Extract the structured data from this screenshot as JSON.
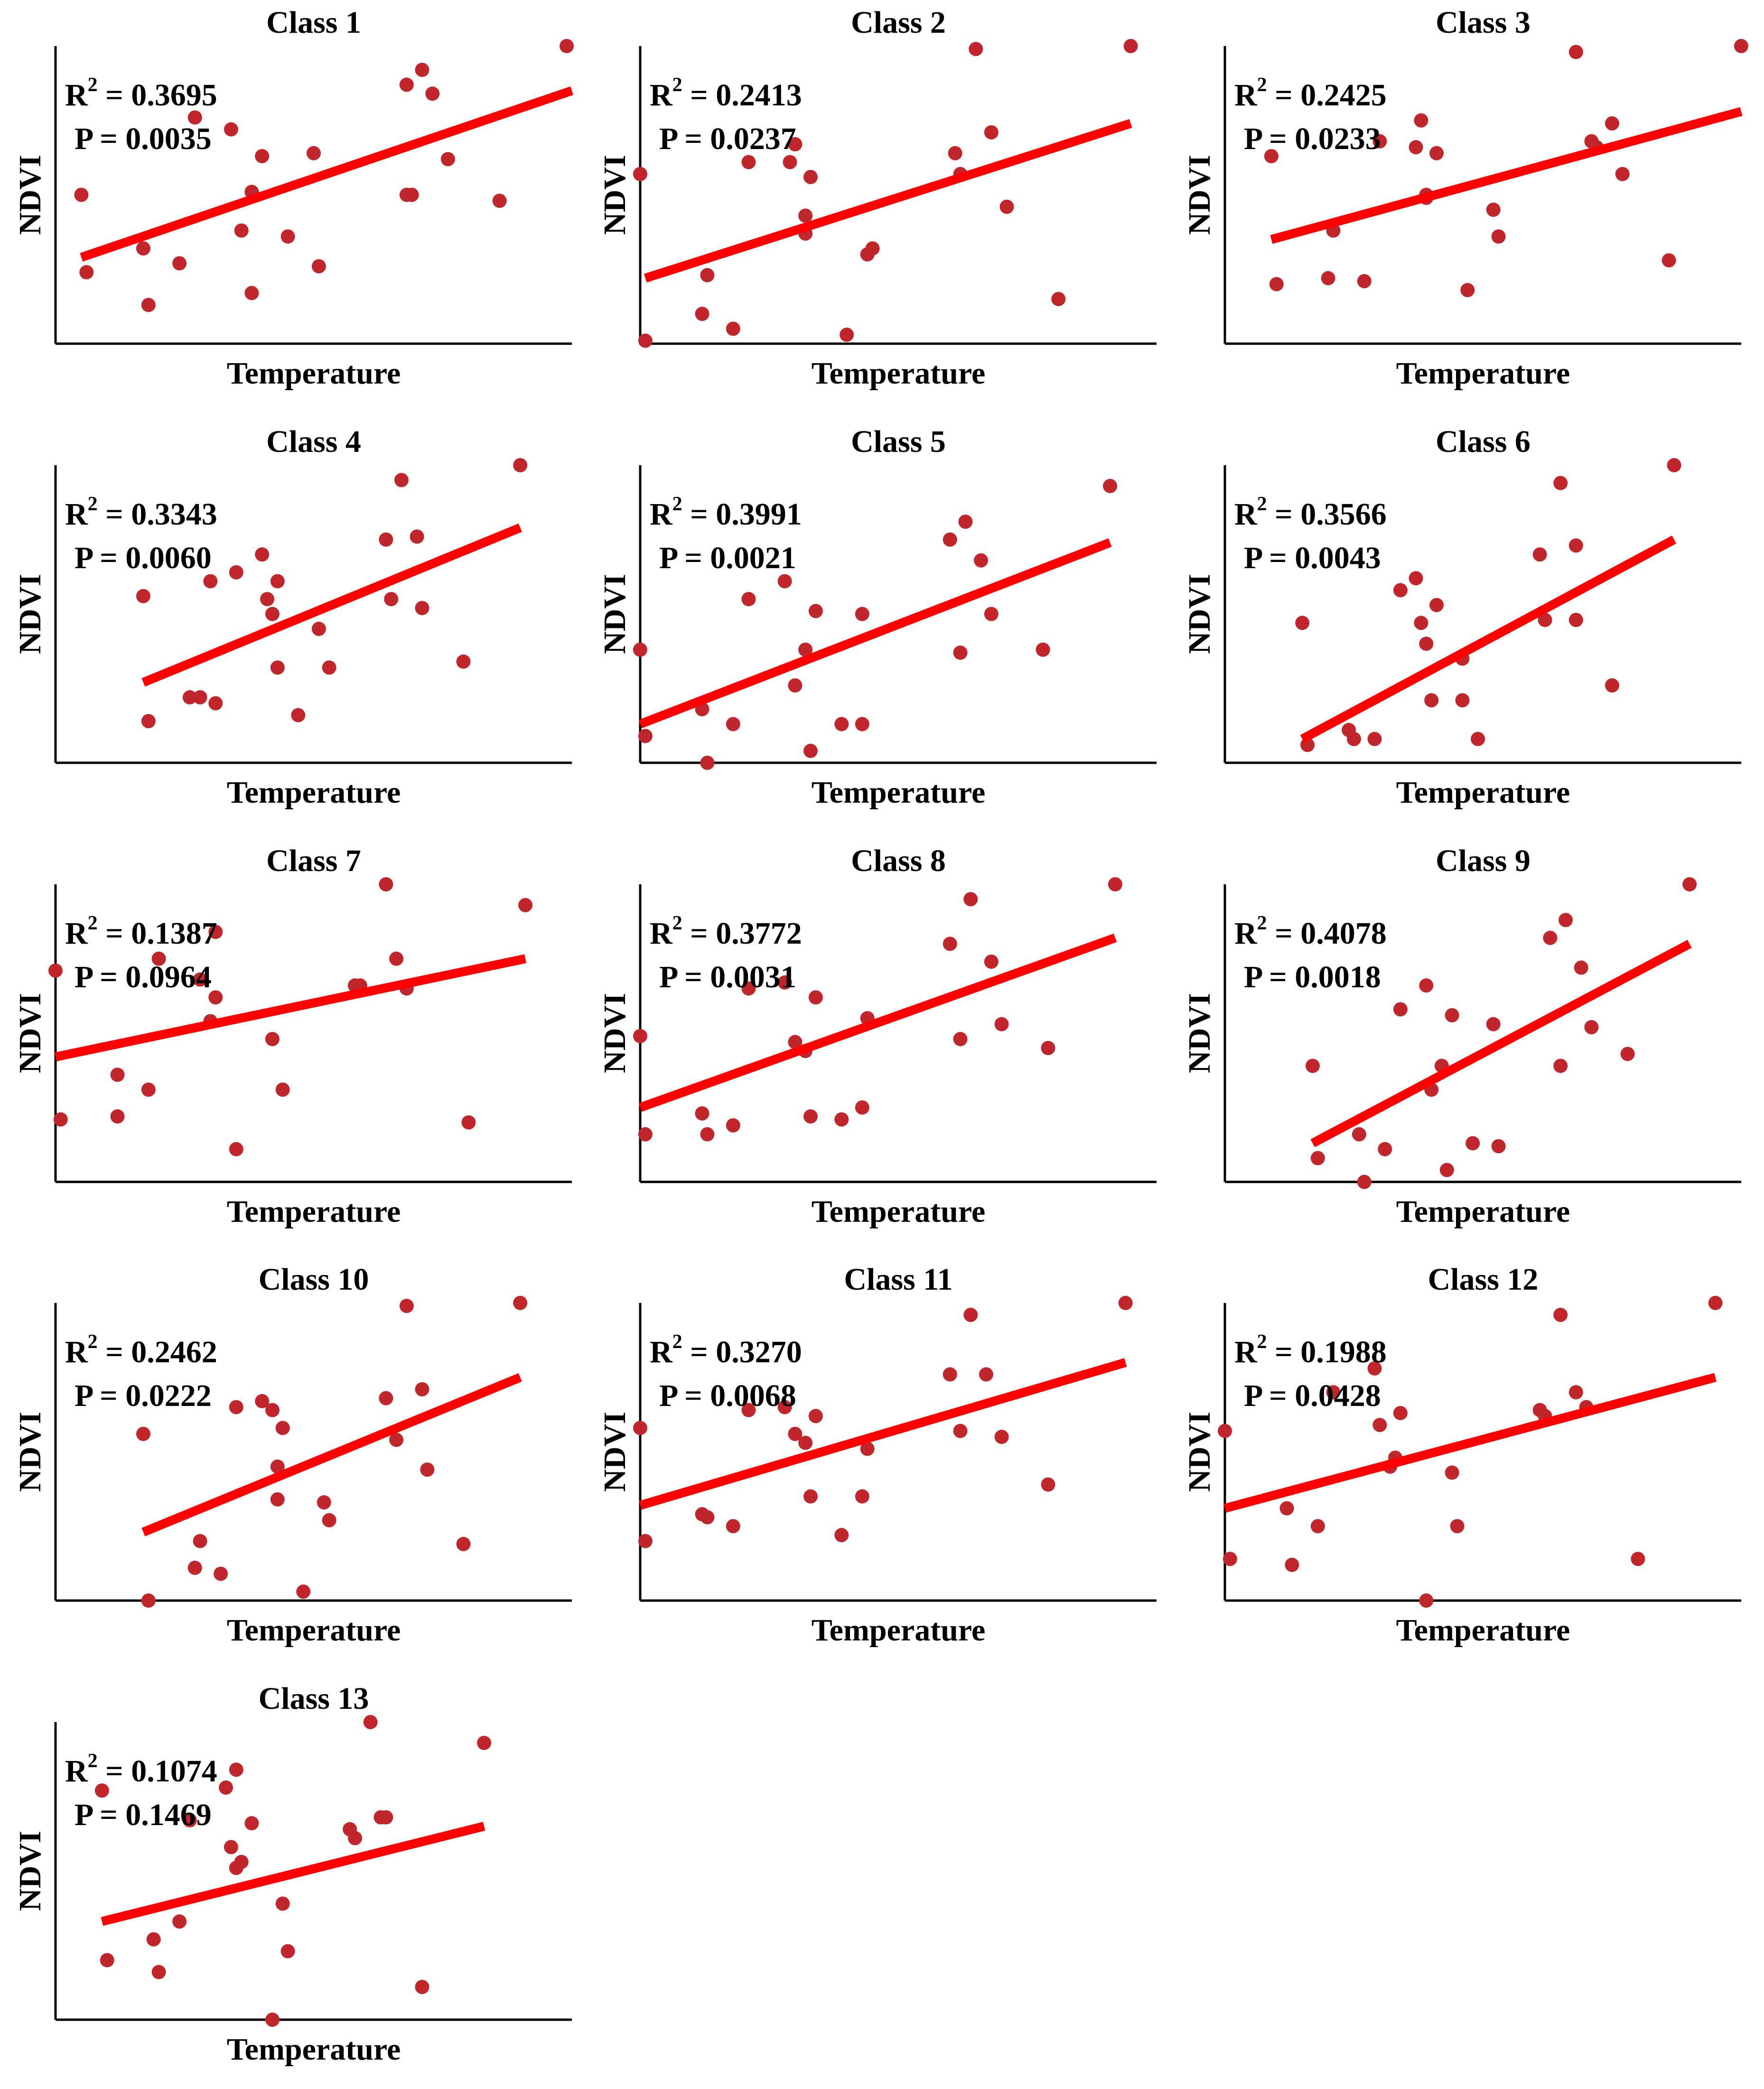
{
  "figure": {
    "marker_color": "#C0272D",
    "fit_color": "#FF0000",
    "axis_color": "#000000"
  },
  "chart_data": [
    {
      "type": "scatter",
      "title": "Class 1",
      "xlabel": "Temperature",
      "ylabel": "NDVI",
      "r2_label": "R",
      "r2_sup": "2",
      "r2_value": " = 0.3695",
      "p_text": "P = 0.0035",
      "points": [
        [
          0.05,
          0.5
        ],
        [
          0.06,
          0.24
        ],
        [
          0.17,
          0.32
        ],
        [
          0.18,
          0.13
        ],
        [
          0.24,
          0.27
        ],
        [
          0.27,
          0.76
        ],
        [
          0.34,
          0.72
        ],
        [
          0.36,
          0.38
        ],
        [
          0.38,
          0.51
        ],
        [
          0.38,
          0.17
        ],
        [
          0.4,
          0.63
        ],
        [
          0.45,
          0.36
        ],
        [
          0.5,
          0.64
        ],
        [
          0.51,
          0.26
        ],
        [
          0.68,
          0.87
        ],
        [
          0.68,
          0.5
        ],
        [
          0.69,
          0.5
        ],
        [
          0.71,
          0.92
        ],
        [
          0.73,
          0.84
        ],
        [
          0.76,
          0.62
        ],
        [
          0.86,
          0.48
        ],
        [
          0.99,
          1.0
        ]
      ],
      "fit": [
        [
          0.05,
          0.29
        ],
        [
          1.0,
          0.85
        ]
      ]
    },
    {
      "type": "scatter",
      "title": "Class 2",
      "xlabel": "Temperature",
      "ylabel": "NDVI",
      "r2_label": "R",
      "r2_sup": "2",
      "r2_value": " = 0.2413",
      "p_text": "P = 0.0237",
      "points": [
        [
          0.0,
          0.57
        ],
        [
          0.01,
          0.01
        ],
        [
          0.12,
          0.1
        ],
        [
          0.13,
          0.23
        ],
        [
          0.18,
          0.05
        ],
        [
          0.21,
          0.61
        ],
        [
          0.29,
          0.61
        ],
        [
          0.3,
          0.67
        ],
        [
          0.32,
          0.43
        ],
        [
          0.32,
          0.37
        ],
        [
          0.33,
          0.56
        ],
        [
          0.4,
          0.03
        ],
        [
          0.44,
          0.3
        ],
        [
          0.45,
          0.32
        ],
        [
          0.61,
          0.64
        ],
        [
          0.62,
          0.57
        ],
        [
          0.65,
          0.99
        ],
        [
          0.68,
          0.71
        ],
        [
          0.71,
          0.46
        ],
        [
          0.81,
          0.15
        ],
        [
          0.95,
          1.0
        ]
      ],
      "fit": [
        [
          0.01,
          0.22
        ],
        [
          0.95,
          0.74
        ]
      ]
    },
    {
      "type": "scatter",
      "title": "Class 3",
      "xlabel": "Temperature",
      "ylabel": "NDVI",
      "r2_label": "R",
      "r2_sup": "2",
      "r2_value": " = 0.2425",
      "p_text": "P = 0.0233",
      "points": [
        [
          0.09,
          0.63
        ],
        [
          0.1,
          0.2
        ],
        [
          0.2,
          0.22
        ],
        [
          0.21,
          0.38
        ],
        [
          0.27,
          0.21
        ],
        [
          0.3,
          0.68
        ],
        [
          0.37,
          0.66
        ],
        [
          0.38,
          0.75
        ],
        [
          0.39,
          0.5
        ],
        [
          0.39,
          0.49
        ],
        [
          0.41,
          0.64
        ],
        [
          0.47,
          0.18
        ],
        [
          0.52,
          0.45
        ],
        [
          0.53,
          0.36
        ],
        [
          0.68,
          0.98
        ],
        [
          0.71,
          0.68
        ],
        [
          0.72,
          0.66
        ],
        [
          0.75,
          0.74
        ],
        [
          0.77,
          0.57
        ],
        [
          0.86,
          0.28
        ],
        [
          1.0,
          1.0
        ]
      ],
      "fit": [
        [
          0.09,
          0.35
        ],
        [
          1.0,
          0.78
        ]
      ]
    },
    {
      "type": "scatter",
      "title": "Class 4",
      "xlabel": "Temperature",
      "ylabel": "NDVI",
      "r2_label": "R",
      "r2_sup": "2",
      "r2_value": " = 0.3343",
      "p_text": "P = 0.0060",
      "points": [
        [
          0.17,
          0.56
        ],
        [
          0.18,
          0.14
        ],
        [
          0.26,
          0.22
        ],
        [
          0.28,
          0.22
        ],
        [
          0.3,
          0.61
        ],
        [
          0.31,
          0.2
        ],
        [
          0.35,
          0.64
        ],
        [
          0.4,
          0.7
        ],
        [
          0.41,
          0.55
        ],
        [
          0.42,
          0.5
        ],
        [
          0.43,
          0.32
        ],
        [
          0.43,
          0.61
        ],
        [
          0.47,
          0.16
        ],
        [
          0.51,
          0.45
        ],
        [
          0.53,
          0.32
        ],
        [
          0.64,
          0.75
        ],
        [
          0.65,
          0.55
        ],
        [
          0.67,
          0.95
        ],
        [
          0.7,
          0.76
        ],
        [
          0.71,
          0.52
        ],
        [
          0.79,
          0.34
        ],
        [
          0.9,
          1.0
        ]
      ],
      "fit": [
        [
          0.17,
          0.27
        ],
        [
          0.9,
          0.79
        ]
      ]
    },
    {
      "type": "scatter",
      "title": "Class 5",
      "xlabel": "Temperature",
      "ylabel": "NDVI",
      "r2_label": "R",
      "r2_sup": "2",
      "r2_value": " = 0.3991",
      "p_text": "P = 0.0021",
      "points": [
        [
          0.0,
          0.38
        ],
        [
          0.01,
          0.09
        ],
        [
          0.12,
          0.18
        ],
        [
          0.13,
          0.0
        ],
        [
          0.18,
          0.13
        ],
        [
          0.21,
          0.55
        ],
        [
          0.28,
          0.61
        ],
        [
          0.3,
          0.26
        ],
        [
          0.32,
          0.38
        ],
        [
          0.33,
          0.04
        ],
        [
          0.34,
          0.51
        ],
        [
          0.39,
          0.13
        ],
        [
          0.43,
          0.13
        ],
        [
          0.43,
          0.5
        ],
        [
          0.6,
          0.75
        ],
        [
          0.62,
          0.37
        ],
        [
          0.63,
          0.81
        ],
        [
          0.66,
          0.68
        ],
        [
          0.68,
          0.5
        ],
        [
          0.78,
          0.38
        ],
        [
          0.91,
          0.93
        ]
      ],
      "fit": [
        [
          0.0,
          0.13
        ],
        [
          0.91,
          0.74
        ]
      ]
    },
    {
      "type": "scatter",
      "title": "Class 6",
      "xlabel": "Temperature",
      "ylabel": "NDVI",
      "r2_label": "R",
      "r2_sup": "2",
      "r2_value": " = 0.3566",
      "p_text": "P = 0.0043",
      "points": [
        [
          0.15,
          0.47
        ],
        [
          0.16,
          0.06
        ],
        [
          0.24,
          0.11
        ],
        [
          0.25,
          0.08
        ],
        [
          0.29,
          0.08
        ],
        [
          0.34,
          0.58
        ],
        [
          0.37,
          0.62
        ],
        [
          0.38,
          0.47
        ],
        [
          0.39,
          0.4
        ],
        [
          0.4,
          0.21
        ],
        [
          0.41,
          0.53
        ],
        [
          0.46,
          0.35
        ],
        [
          0.46,
          0.21
        ],
        [
          0.49,
          0.08
        ],
        [
          0.61,
          0.7
        ],
        [
          0.62,
          0.48
        ],
        [
          0.65,
          0.94
        ],
        [
          0.68,
          0.73
        ],
        [
          0.68,
          0.48
        ],
        [
          0.75,
          0.26
        ],
        [
          0.87,
          1.0
        ]
      ],
      "fit": [
        [
          0.15,
          0.08
        ],
        [
          0.87,
          0.75
        ]
      ]
    },
    {
      "type": "scatter",
      "title": "Class 7",
      "xlabel": "Temperature",
      "ylabel": "NDVI",
      "r2_label": "R",
      "r2_sup": "2",
      "r2_value": " = 0.1387",
      "p_text": "P = 0.0964",
      "points": [
        [
          0.0,
          0.71
        ],
        [
          0.01,
          0.21
        ],
        [
          0.12,
          0.22
        ],
        [
          0.12,
          0.36
        ],
        [
          0.18,
          0.31
        ],
        [
          0.2,
          0.75
        ],
        [
          0.28,
          0.68
        ],
        [
          0.3,
          0.54
        ],
        [
          0.31,
          0.62
        ],
        [
          0.31,
          0.84
        ],
        [
          0.35,
          0.11
        ],
        [
          0.42,
          0.48
        ],
        [
          0.44,
          0.31
        ],
        [
          0.58,
          0.66
        ],
        [
          0.59,
          0.66
        ],
        [
          0.64,
          1.0
        ],
        [
          0.66,
          0.75
        ],
        [
          0.68,
          0.65
        ],
        [
          0.8,
          0.2
        ],
        [
          0.91,
          0.93
        ]
      ],
      "fit": [
        [
          0.0,
          0.42
        ],
        [
          0.91,
          0.75
        ]
      ]
    },
    {
      "type": "scatter",
      "title": "Class 8",
      "xlabel": "Temperature",
      "ylabel": "NDVI",
      "r2_label": "R",
      "r2_sup": "2",
      "r2_value": " = 0.3772",
      "p_text": "P = 0.0031",
      "points": [
        [
          0.0,
          0.49
        ],
        [
          0.01,
          0.16
        ],
        [
          0.12,
          0.23
        ],
        [
          0.13,
          0.16
        ],
        [
          0.18,
          0.19
        ],
        [
          0.21,
          0.65
        ],
        [
          0.28,
          0.67
        ],
        [
          0.3,
          0.47
        ],
        [
          0.32,
          0.44
        ],
        [
          0.33,
          0.22
        ],
        [
          0.34,
          0.62
        ],
        [
          0.39,
          0.21
        ],
        [
          0.43,
          0.25
        ],
        [
          0.44,
          0.55
        ],
        [
          0.6,
          0.8
        ],
        [
          0.62,
          0.48
        ],
        [
          0.64,
          0.95
        ],
        [
          0.68,
          0.74
        ],
        [
          0.7,
          0.53
        ],
        [
          0.79,
          0.45
        ],
        [
          0.92,
          1.0
        ]
      ],
      "fit": [
        [
          0.0,
          0.25
        ],
        [
          0.92,
          0.82
        ]
      ]
    },
    {
      "type": "scatter",
      "title": "Class 9",
      "xlabel": "Temperature",
      "ylabel": "NDVI",
      "r2_label": "R",
      "r2_sup": "2",
      "r2_value": " = 0.4078",
      "p_text": "P = 0.0018",
      "points": [
        [
          0.17,
          0.39
        ],
        [
          0.18,
          0.08
        ],
        [
          0.26,
          0.16
        ],
        [
          0.27,
          0.0
        ],
        [
          0.31,
          0.11
        ],
        [
          0.34,
          0.58
        ],
        [
          0.39,
          0.66
        ],
        [
          0.4,
          0.31
        ],
        [
          0.42,
          0.39
        ],
        [
          0.43,
          0.04
        ],
        [
          0.44,
          0.56
        ],
        [
          0.48,
          0.13
        ],
        [
          0.52,
          0.53
        ],
        [
          0.53,
          0.12
        ],
        [
          0.63,
          0.82
        ],
        [
          0.65,
          0.39
        ],
        [
          0.66,
          0.88
        ],
        [
          0.69,
          0.72
        ],
        [
          0.71,
          0.52
        ],
        [
          0.78,
          0.43
        ],
        [
          0.9,
          1.0
        ]
      ],
      "fit": [
        [
          0.17,
          0.13
        ],
        [
          0.9,
          0.8
        ]
      ]
    },
    {
      "type": "scatter",
      "title": "Class 10",
      "xlabel": "Temperature",
      "ylabel": "NDVI",
      "r2_label": "R",
      "r2_sup": "2",
      "r2_value": " = 0.2462",
      "p_text": "P = 0.0222",
      "points": [
        [
          0.17,
          0.56
        ],
        [
          0.18,
          0.0
        ],
        [
          0.27,
          0.11
        ],
        [
          0.28,
          0.2
        ],
        [
          0.32,
          0.09
        ],
        [
          0.35,
          0.65
        ],
        [
          0.4,
          0.67
        ],
        [
          0.42,
          0.64
        ],
        [
          0.43,
          0.45
        ],
        [
          0.43,
          0.34
        ],
        [
          0.44,
          0.58
        ],
        [
          0.48,
          0.03
        ],
        [
          0.52,
          0.33
        ],
        [
          0.53,
          0.27
        ],
        [
          0.64,
          0.68
        ],
        [
          0.66,
          0.54
        ],
        [
          0.68,
          0.99
        ],
        [
          0.71,
          0.71
        ],
        [
          0.72,
          0.44
        ],
        [
          0.79,
          0.19
        ],
        [
          0.9,
          1.0
        ]
      ],
      "fit": [
        [
          0.17,
          0.23
        ],
        [
          0.9,
          0.75
        ]
      ]
    },
    {
      "type": "scatter",
      "title": "Class 11",
      "xlabel": "Temperature",
      "ylabel": "NDVI",
      "r2_label": "R",
      "r2_sup": "2",
      "r2_value": " = 0.3270",
      "p_text": "P = 0.0068",
      "points": [
        [
          0.0,
          0.58
        ],
        [
          0.01,
          0.2
        ],
        [
          0.12,
          0.29
        ],
        [
          0.13,
          0.28
        ],
        [
          0.18,
          0.25
        ],
        [
          0.21,
          0.64
        ],
        [
          0.28,
          0.65
        ],
        [
          0.3,
          0.56
        ],
        [
          0.32,
          0.53
        ],
        [
          0.33,
          0.35
        ],
        [
          0.34,
          0.62
        ],
        [
          0.39,
          0.22
        ],
        [
          0.43,
          0.35
        ],
        [
          0.44,
          0.51
        ],
        [
          0.6,
          0.76
        ],
        [
          0.62,
          0.57
        ],
        [
          0.64,
          0.96
        ],
        [
          0.67,
          0.76
        ],
        [
          0.7,
          0.55
        ],
        [
          0.79,
          0.39
        ],
        [
          0.94,
          1.0
        ]
      ],
      "fit": [
        [
          0.0,
          0.32
        ],
        [
          0.94,
          0.8
        ]
      ]
    },
    {
      "type": "scatter",
      "title": "Class 12",
      "xlabel": "Temperature",
      "ylabel": "NDVI",
      "r2_label": "R",
      "r2_sup": "2",
      "r2_value": " = 0.1988",
      "p_text": "P = 0.0428",
      "points": [
        [
          0.0,
          0.57
        ],
        [
          0.01,
          0.14
        ],
        [
          0.12,
          0.31
        ],
        [
          0.13,
          0.12
        ],
        [
          0.18,
          0.25
        ],
        [
          0.21,
          0.7
        ],
        [
          0.29,
          0.78
        ],
        [
          0.3,
          0.59
        ],
        [
          0.32,
          0.45
        ],
        [
          0.33,
          0.48
        ],
        [
          0.34,
          0.63
        ],
        [
          0.39,
          0.0
        ],
        [
          0.44,
          0.43
        ],
        [
          0.45,
          0.25
        ],
        [
          0.61,
          0.64
        ],
        [
          0.62,
          0.62
        ],
        [
          0.65,
          0.96
        ],
        [
          0.68,
          0.7
        ],
        [
          0.7,
          0.65
        ],
        [
          0.8,
          0.14
        ],
        [
          0.95,
          1.0
        ]
      ],
      "fit": [
        [
          0.0,
          0.31
        ],
        [
          0.95,
          0.75
        ]
      ]
    },
    {
      "type": "scatter",
      "title": "Class 13",
      "xlabel": "Temperature",
      "ylabel": "NDVI",
      "r2_label": "R",
      "r2_sup": "2",
      "r2_value": " = 0.1074",
      "p_text": "P = 0.1469",
      "points": [
        [
          0.09,
          0.77
        ],
        [
          0.1,
          0.2
        ],
        [
          0.19,
          0.27
        ],
        [
          0.2,
          0.16
        ],
        [
          0.24,
          0.33
        ],
        [
          0.26,
          0.67
        ],
        [
          0.33,
          0.78
        ],
        [
          0.34,
          0.58
        ],
        [
          0.35,
          0.51
        ],
        [
          0.35,
          0.84
        ],
        [
          0.36,
          0.53
        ],
        [
          0.38,
          0.66
        ],
        [
          0.42,
          0.0
        ],
        [
          0.44,
          0.39
        ],
        [
          0.45,
          0.23
        ],
        [
          0.57,
          0.64
        ],
        [
          0.58,
          0.61
        ],
        [
          0.61,
          1.0
        ],
        [
          0.63,
          0.68
        ],
        [
          0.64,
          0.68
        ],
        [
          0.71,
          0.11
        ],
        [
          0.83,
          0.93
        ]
      ],
      "fit": [
        [
          0.09,
          0.33
        ],
        [
          0.83,
          0.65
        ]
      ]
    }
  ]
}
